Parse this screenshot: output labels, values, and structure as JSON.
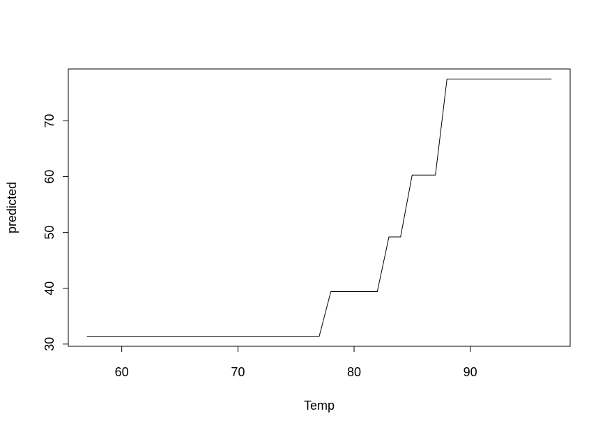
{
  "chart_data": {
    "type": "line",
    "title": "",
    "xlabel": "Temp",
    "ylabel": "predicted",
    "xlim": [
      55.4,
      98.6
    ],
    "ylim": [
      29.6,
      79.3
    ],
    "xticks": [
      60,
      70,
      80,
      90
    ],
    "yticks": [
      30,
      40,
      50,
      60,
      70
    ],
    "grid": false,
    "line_color": "#000000",
    "series": [
      {
        "x": [
          57,
          77,
          78,
          82,
          83,
          84,
          85,
          87,
          88,
          97
        ],
        "y": [
          31.4,
          31.4,
          39.4,
          39.4,
          49.2,
          49.2,
          60.3,
          60.3,
          77.5,
          77.5
        ]
      }
    ]
  }
}
